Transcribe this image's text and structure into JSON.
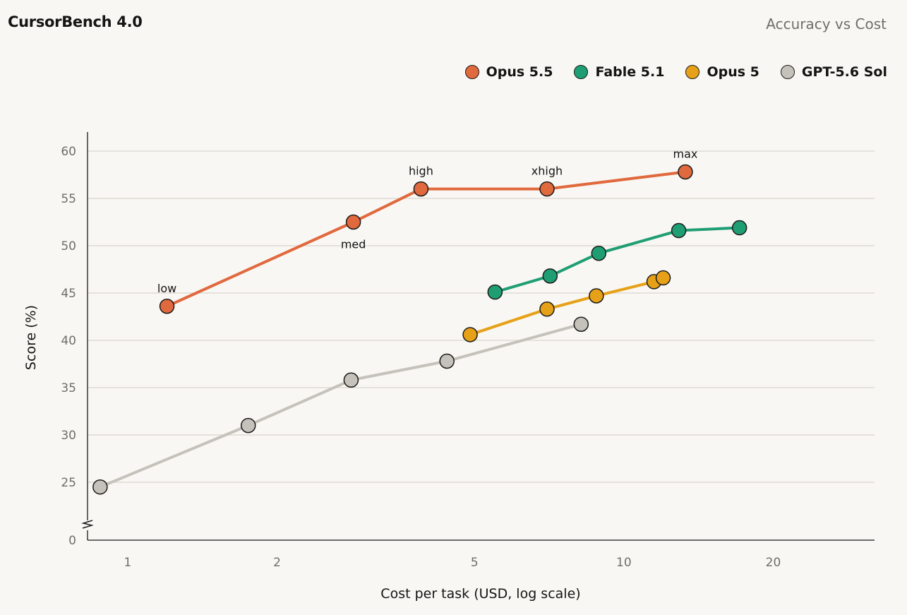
{
  "header": {
    "title": "CursorBench 4.0",
    "subtitle": "Accuracy vs Cost"
  },
  "chart_data": {
    "type": "line",
    "title": "CursorBench 4.0",
    "subtitle": "Accuracy vs Cost",
    "xlabel": "Cost per task (USD, log scale)",
    "ylabel": "Score (%)",
    "xscale": "log",
    "xlim": [
      0.83,
      32
    ],
    "xticks": [
      1,
      2,
      5,
      10,
      20
    ],
    "yticks": [
      0,
      25,
      30,
      35,
      40,
      45,
      50,
      55,
      60
    ],
    "y_axis_break": "between 0 and 25",
    "grid": true,
    "legend_position": "top-right",
    "series": [
      {
        "name": "Opus 5.5",
        "color": "#e0693d",
        "x": [
          1.2,
          2.85,
          3.9,
          7.0,
          13.3
        ],
        "y": [
          43.6,
          52.5,
          56.0,
          56.0,
          57.8
        ],
        "labels": [
          "low",
          "med",
          "high",
          "xhigh",
          "max"
        ]
      },
      {
        "name": "Fable 5.1",
        "color": "#1f9e74",
        "x": [
          5.5,
          7.1,
          8.9,
          12.9,
          17.1
        ],
        "y": [
          45.1,
          46.8,
          49.2,
          51.6,
          51.9
        ]
      },
      {
        "name": "Opus 5",
        "color": "#e6a118",
        "x": [
          4.9,
          7.0,
          8.8,
          11.5,
          12.0
        ],
        "y": [
          40.6,
          43.3,
          44.7,
          46.2,
          46.6
        ]
      },
      {
        "name": "GPT-5.6 Sol",
        "color": "#c4c2ba",
        "x": [
          0.88,
          1.75,
          2.82,
          4.4,
          8.2
        ],
        "y": [
          24.5,
          31.0,
          35.8,
          37.8,
          41.7
        ]
      }
    ]
  }
}
